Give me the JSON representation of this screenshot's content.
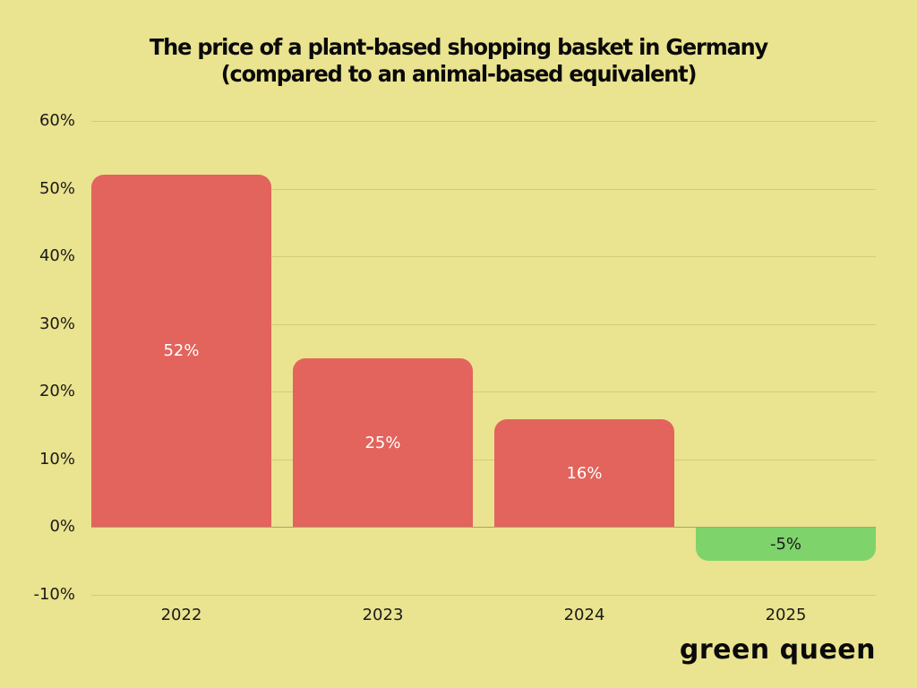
{
  "chart_data": {
    "type": "bar",
    "title": "The price of a plant-based shopping basket in Germany (compared to an animal-based equivalent)",
    "title_lines": [
      "The price of a plant-based shopping basket in Germany",
      "(compared to an animal-based equivalent)"
    ],
    "xlabel": "",
    "ylabel": "",
    "categories": [
      "2022",
      "2023",
      "2024",
      "2025"
    ],
    "values": [
      52,
      25,
      16,
      -5
    ],
    "value_labels": [
      "52%",
      "25%",
      "16%",
      "-5%"
    ],
    "bar_colors": [
      "#e2645c",
      "#e2645c",
      "#e2645c",
      "#7fd36b"
    ],
    "ylim": [
      -10,
      60
    ],
    "yticks": [
      60,
      50,
      40,
      30,
      20,
      10,
      0,
      -10
    ],
    "ytick_labels": [
      "60%",
      "50%",
      "40%",
      "30%",
      "20%",
      "10%",
      "0%",
      "-10%"
    ],
    "grid": true,
    "legend": null
  },
  "colors": {
    "background": "#eae38f",
    "positive_bar": "#e2645c",
    "negative_bar": "#7fd36b",
    "positive_label_text": "#ffffff",
    "negative_label_text": "#1a1a1a",
    "gridline": "#d2cb7c"
  },
  "brand": {
    "logo_text": "green queen"
  }
}
